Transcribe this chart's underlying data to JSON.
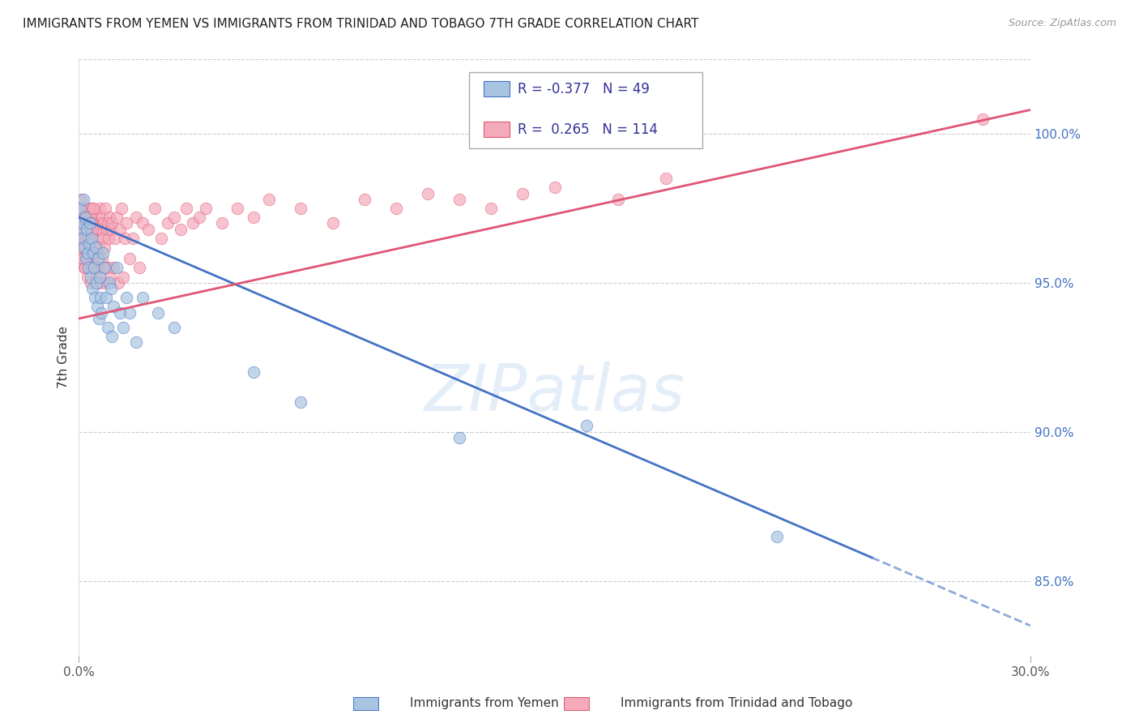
{
  "title": "IMMIGRANTS FROM YEMEN VS IMMIGRANTS FROM TRINIDAD AND TOBAGO 7TH GRADE CORRELATION CHART",
  "source": "Source: ZipAtlas.com",
  "ylabel": "7th Grade",
  "ylabel_right_ticks": [
    85.0,
    90.0,
    95.0,
    100.0
  ],
  "xlim": [
    0.0,
    30.0
  ],
  "ylim": [
    82.5,
    102.5
  ],
  "legend_blue_r": "-0.377",
  "legend_blue_n": "49",
  "legend_pink_r": "0.265",
  "legend_pink_n": "114",
  "blue_color": "#A8C4E0",
  "pink_color": "#F4AABB",
  "trendline_blue": "#4472C4",
  "trendline_pink": "#E05575",
  "watermark": "ZIPatlas",
  "blue_trend_x0": 0.0,
  "blue_trend_y0": 97.2,
  "blue_trend_x1": 30.0,
  "blue_trend_y1": 83.5,
  "blue_solid_end": 25.0,
  "pink_trend_x0": 0.0,
  "pink_trend_y0": 93.8,
  "pink_trend_x1": 30.0,
  "pink_trend_y1": 100.8,
  "blue_scatter_x": [
    0.05,
    0.08,
    0.1,
    0.12,
    0.15,
    0.18,
    0.2,
    0.22,
    0.25,
    0.28,
    0.3,
    0.32,
    0.35,
    0.38,
    0.4,
    0.42,
    0.45,
    0.48,
    0.5,
    0.52,
    0.55,
    0.58,
    0.6,
    0.62,
    0.65,
    0.68,
    0.7,
    0.75,
    0.8,
    0.85,
    0.9,
    0.95,
    1.0,
    1.05,
    1.1,
    1.2,
    1.3,
    1.4,
    1.5,
    1.6,
    1.8,
    2.0,
    2.5,
    3.0,
    5.5,
    7.0,
    12.0,
    16.0,
    22.0
  ],
  "blue_scatter_y": [
    97.5,
    96.8,
    97.0,
    96.5,
    97.8,
    96.2,
    97.2,
    95.8,
    96.8,
    96.0,
    95.5,
    96.3,
    97.0,
    95.2,
    96.5,
    94.8,
    96.0,
    95.5,
    94.5,
    96.2,
    95.0,
    94.2,
    95.8,
    93.8,
    95.2,
    94.5,
    94.0,
    96.0,
    95.5,
    94.5,
    93.5,
    95.0,
    94.8,
    93.2,
    94.2,
    95.5,
    94.0,
    93.5,
    94.5,
    94.0,
    93.0,
    94.5,
    94.0,
    93.5,
    92.0,
    91.0,
    89.8,
    90.2,
    86.5
  ],
  "pink_scatter_x": [
    0.02,
    0.04,
    0.06,
    0.08,
    0.1,
    0.12,
    0.14,
    0.16,
    0.18,
    0.2,
    0.22,
    0.24,
    0.26,
    0.28,
    0.3,
    0.32,
    0.34,
    0.36,
    0.38,
    0.4,
    0.42,
    0.44,
    0.46,
    0.48,
    0.5,
    0.52,
    0.54,
    0.56,
    0.58,
    0.6,
    0.62,
    0.64,
    0.66,
    0.68,
    0.7,
    0.72,
    0.74,
    0.76,
    0.78,
    0.8,
    0.82,
    0.84,
    0.86,
    0.88,
    0.9,
    0.92,
    0.94,
    0.96,
    0.98,
    1.0,
    1.05,
    1.1,
    1.15,
    1.2,
    1.25,
    1.3,
    1.35,
    1.4,
    1.45,
    1.5,
    1.6,
    1.7,
    1.8,
    1.9,
    2.0,
    2.2,
    2.4,
    2.6,
    2.8,
    3.0,
    3.2,
    3.4,
    3.6,
    3.8,
    4.0,
    4.5,
    5.0,
    5.5,
    6.0,
    7.0,
    8.0,
    9.0,
    10.0,
    11.0,
    12.0,
    13.0,
    14.0,
    15.0,
    17.0,
    18.5,
    0.03,
    0.05,
    0.07,
    0.09,
    0.11,
    0.13,
    0.15,
    0.17,
    0.19,
    0.21,
    0.23,
    0.25,
    0.27,
    0.29,
    0.31,
    0.33,
    0.35,
    0.37,
    0.39,
    0.41,
    0.43,
    0.45,
    0.47,
    28.5
  ],
  "pink_scatter_y": [
    97.2,
    96.5,
    97.8,
    96.0,
    97.5,
    95.8,
    97.0,
    96.8,
    95.5,
    97.2,
    96.3,
    97.5,
    95.2,
    96.8,
    97.0,
    95.8,
    96.5,
    97.2,
    95.0,
    96.8,
    97.5,
    95.5,
    96.2,
    97.0,
    95.8,
    96.5,
    97.2,
    95.2,
    96.8,
    97.0,
    95.5,
    96.2,
    97.5,
    95.0,
    96.8,
    97.2,
    95.8,
    96.5,
    97.0,
    95.5,
    96.2,
    97.5,
    95.0,
    96.8,
    97.0,
    95.5,
    96.5,
    97.2,
    95.2,
    96.8,
    97.0,
    95.5,
    96.5,
    97.2,
    95.0,
    96.8,
    97.5,
    95.2,
    96.5,
    97.0,
    95.8,
    96.5,
    97.2,
    95.5,
    97.0,
    96.8,
    97.5,
    96.5,
    97.0,
    97.2,
    96.8,
    97.5,
    97.0,
    97.2,
    97.5,
    97.0,
    97.5,
    97.2,
    97.8,
    97.5,
    97.0,
    97.8,
    97.5,
    98.0,
    97.8,
    97.5,
    98.0,
    98.2,
    97.8,
    98.5,
    97.0,
    96.8,
    97.5,
    96.2,
    97.2,
    95.8,
    97.0,
    96.5,
    95.5,
    97.0,
    96.5,
    97.2,
    95.8,
    97.0,
    96.5,
    97.5,
    96.0,
    97.2,
    95.5,
    97.0,
    96.8,
    97.5,
    96.0,
    100.5
  ]
}
